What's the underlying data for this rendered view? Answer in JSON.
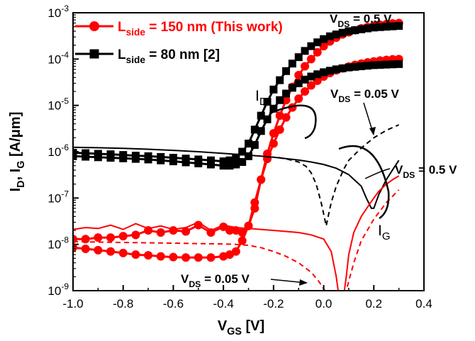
{
  "chart_data": {
    "type": "line",
    "xlabel_main": "V",
    "xlabel_sub": "GS",
    "xlabel_unit": " [V]",
    "ylabel_main": "I",
    "ylabel_sub1": "D",
    "ylabel_mid": ", I",
    "ylabel_sub2": "G",
    "ylabel_unit": " [A/μm]",
    "xlim": [
      -1.0,
      0.4
    ],
    "ylim_log10": [
      -9,
      -3
    ],
    "yscale": "log",
    "x_ticks": [
      "-1.0",
      "-0.8",
      "-0.6",
      "-0.4",
      "-0.2",
      "0.0",
      "0.2",
      "0.4"
    ],
    "y_tick_exponents": [
      "-9",
      "-8",
      "-7",
      "-6",
      "-5",
      "-4",
      "-3"
    ],
    "y_tick_base": "10",
    "legend": {
      "placement": "top-left",
      "entries": [
        {
          "main": "L",
          "sub": "side",
          "rest": " = 150 nm (This work)",
          "color": "#ff0000",
          "marker": "circle"
        },
        {
          "main": "L",
          "sub": "side",
          "rest": " = 80 nm [2]",
          "color": "#000000",
          "marker": "square"
        }
      ]
    },
    "annotations": {
      "vds_high_top": {
        "main": "V",
        "sub": "DS",
        "rest": " = 0.5 V"
      },
      "vds_low_top": {
        "main": "V",
        "sub": "DS",
        "rest": " = 0.05 V"
      },
      "vds_high_right": {
        "main": "V",
        "sub": "DS",
        "rest": " = 0.5 V"
      },
      "vds_low_bottom": {
        "main": "V",
        "sub": "DS",
        "rest": " = 0.05 V"
      },
      "id_label": {
        "main": "I",
        "sub": "D"
      },
      "ig_label": {
        "main": "I",
        "sub": "G"
      }
    },
    "series": [
      {
        "group": "I_D",
        "device": "L_side = 150 nm (This work)",
        "vds": "0.5 V",
        "color": "#ff0000",
        "marker": "circle",
        "x": [
          -1.0,
          -0.95,
          -0.9,
          -0.85,
          -0.8,
          -0.75,
          -0.7,
          -0.65,
          -0.6,
          -0.55,
          -0.5,
          -0.45,
          -0.4,
          -0.375,
          -0.35,
          -0.325,
          -0.3,
          -0.275,
          -0.25,
          -0.225,
          -0.2,
          -0.175,
          -0.15,
          -0.125,
          -0.1,
          -0.075,
          -0.05,
          -0.025,
          0.0,
          0.025,
          0.05,
          0.075,
          0.1,
          0.125,
          0.15,
          0.175,
          0.2,
          0.225,
          0.25,
          0.275,
          0.3
        ],
        "y": [
          1.3e-08,
          1.3e-08,
          1.4e-08,
          1.4e-08,
          1.5e-08,
          1.6e-08,
          2e-08,
          1.8e-08,
          2e-08,
          1.9e-08,
          2.6e-08,
          1.8e-08,
          2.4e-08,
          2e-08,
          2e-08,
          1.8e-08,
          2.5e-08,
          6e-08,
          2.5e-07,
          9e-07,
          2.5e-06,
          6e-06,
          1.3e-05,
          2.5e-05,
          4.5e-05,
          7e-05,
          0.0001,
          0.00014,
          0.00019,
          0.00024,
          0.00029,
          0.00034,
          0.00038,
          0.00042,
          0.00046,
          0.00049,
          0.00052,
          0.00055,
          0.00057,
          0.00059,
          0.0006
        ]
      },
      {
        "group": "I_D",
        "device": "L_side = 150 nm (This work)",
        "vds": "0.05 V",
        "color": "#ff0000",
        "marker": "circle",
        "x": [
          -1.0,
          -0.95,
          -0.9,
          -0.85,
          -0.8,
          -0.75,
          -0.7,
          -0.65,
          -0.6,
          -0.55,
          -0.5,
          -0.45,
          -0.4,
          -0.375,
          -0.35,
          -0.325,
          -0.3,
          -0.275,
          -0.25,
          -0.225,
          -0.2,
          -0.175,
          -0.15,
          -0.125,
          -0.1,
          -0.075,
          -0.05,
          -0.025,
          0.0,
          0.025,
          0.05,
          0.075,
          0.1,
          0.125,
          0.15,
          0.175,
          0.2,
          0.225,
          0.25,
          0.275,
          0.3
        ],
        "y": [
          8.5e-09,
          8e-09,
          7.5e-09,
          7e-09,
          6.5e-09,
          6e-09,
          5.8e-09,
          5.5e-09,
          5.3e-09,
          5.2e-09,
          5.2e-09,
          5.2e-09,
          5.5e-09,
          6e-09,
          7e-09,
          1.2e-08,
          2.5e-08,
          8e-08,
          2.5e-07,
          7e-07,
          1.5e-06,
          3e-06,
          5.5e-06,
          9e-06,
          1.4e-05,
          2e-05,
          2.7e-05,
          3.4e-05,
          4.2e-05,
          5e-05,
          5.7e-05,
          6.3e-05,
          6.9e-05,
          7.5e-05,
          8e-05,
          8.5e-05,
          8.9e-05,
          9.3e-05,
          9.6e-05,
          9.9e-05,
          0.0001
        ]
      },
      {
        "group": "I_D",
        "device": "L_side = 80 nm [2]",
        "vds": "0.5 V",
        "color": "#000000",
        "marker": "square",
        "x": [
          -1.0,
          -0.95,
          -0.9,
          -0.85,
          -0.8,
          -0.75,
          -0.7,
          -0.65,
          -0.6,
          -0.55,
          -0.5,
          -0.45,
          -0.4,
          -0.375,
          -0.35,
          -0.325,
          -0.3,
          -0.275,
          -0.25,
          -0.225,
          -0.2,
          -0.175,
          -0.15,
          -0.125,
          -0.1,
          -0.075,
          -0.05,
          -0.025,
          0.0,
          0.025,
          0.05,
          0.075,
          0.1,
          0.125,
          0.15,
          0.175,
          0.2,
          0.225,
          0.25,
          0.275,
          0.3
        ],
        "y": [
          9.5e-07,
          9.3e-07,
          9e-07,
          8.8e-07,
          8.5e-07,
          8.2e-07,
          8e-07,
          7.7e-07,
          7.4e-07,
          7.1e-07,
          6.8e-07,
          6.5e-07,
          6.2e-07,
          6.5e-07,
          7.5e-07,
          1e-06,
          1.5e-06,
          3e-06,
          6e-06,
          1.2e-05,
          2.2e-05,
          3.5e-05,
          5.5e-05,
          8e-05,
          0.00011,
          0.00015,
          0.00019,
          0.00023,
          0.00027,
          0.00031,
          0.00034,
          0.00037,
          0.0004,
          0.00042,
          0.00044,
          0.00046,
          0.00048,
          0.00049,
          0.0005,
          0.00051,
          0.00052
        ]
      },
      {
        "group": "I_D",
        "device": "L_side = 80 nm [2]",
        "vds": "0.05 V",
        "color": "#000000",
        "marker": "square",
        "x": [
          -1.0,
          -0.95,
          -0.9,
          -0.85,
          -0.8,
          -0.75,
          -0.7,
          -0.65,
          -0.6,
          -0.55,
          -0.5,
          -0.45,
          -0.4,
          -0.375,
          -0.35,
          -0.325,
          -0.3,
          -0.275,
          -0.25,
          -0.225,
          -0.2,
          -0.175,
          -0.15,
          -0.125,
          -0.1,
          -0.075,
          -0.05,
          -0.025,
          0.0,
          0.025,
          0.05,
          0.075,
          0.1,
          0.125,
          0.15,
          0.175,
          0.2,
          0.225,
          0.25,
          0.275,
          0.3
        ],
        "y": [
          8e-07,
          7.8e-07,
          7.6e-07,
          7.4e-07,
          7.2e-07,
          7e-07,
          6.8e-07,
          6.5e-07,
          6.2e-07,
          5.9e-07,
          5.6e-07,
          5.3e-07,
          5e-07,
          5e-07,
          5.3e-07,
          6e-07,
          8e-07,
          1.4e-06,
          2.8e-06,
          5e-06,
          8.5e-06,
          1.3e-05,
          1.8e-05,
          2.4e-05,
          3e-05,
          3.6e-05,
          4.2e-05,
          4.7e-05,
          5.2e-05,
          5.6e-05,
          6e-05,
          6.3e-05,
          6.6e-05,
          6.8e-05,
          7e-05,
          7.2e-05,
          7.4e-05,
          7.5e-05,
          7.6e-05,
          7.7e-05,
          7.8e-05
        ]
      },
      {
        "group": "I_G",
        "device": "L_side = 80 nm [2]",
        "vds": "0.5 V",
        "color": "#000000",
        "line": "solid",
        "x": [
          -1.0,
          -0.9,
          -0.8,
          -0.7,
          -0.6,
          -0.5,
          -0.4,
          -0.3,
          -0.25,
          -0.2,
          -0.15,
          -0.1,
          -0.05,
          0.0,
          0.05,
          0.1,
          0.15,
          0.17,
          0.19,
          0.2,
          0.22,
          0.25,
          0.28,
          0.3
        ],
        "y": [
          1.25e-06,
          1.22e-06,
          1.18e-06,
          1.13e-06,
          1.07e-06,
          1e-06,
          9.2e-07,
          8.4e-07,
          8e-07,
          7.6e-07,
          7.1e-07,
          6.6e-07,
          6e-07,
          5.3e-07,
          4.4e-07,
          3.2e-07,
          1.8e-07,
          1e-07,
          6e-08,
          6e-08,
          1.2e-07,
          2.5e-07,
          4.5e-07,
          6.5e-07
        ]
      },
      {
        "group": "I_G",
        "device": "L_side = 80 nm [2]",
        "vds": "0.05 V",
        "color": "#000000",
        "line": "dashed",
        "x": [
          -0.18,
          -0.14,
          -0.1,
          -0.07,
          -0.05,
          -0.03,
          -0.01,
          0.0,
          0.01,
          0.02,
          0.03,
          0.05,
          0.08,
          0.1,
          0.15,
          0.2,
          0.25,
          0.3
        ],
        "y": [
          7.5e-07,
          6.8e-07,
          6e-07,
          4.8e-07,
          3.5e-07,
          2e-07,
          8e-08,
          4.5e-08,
          2.5e-08,
          4.5e-08,
          8e-08,
          1.8e-07,
          4.2e-07,
          6.5e-07,
          1.2e-06,
          2e-06,
          2.9e-06,
          3.8e-06
        ]
      },
      {
        "group": "I_G",
        "device": "L_side = 150 nm (This work)",
        "vds": "0.5 V",
        "color": "#ff0000",
        "line": "solid",
        "x": [
          -1.0,
          -0.95,
          -0.9,
          -0.85,
          -0.8,
          -0.75,
          -0.7,
          -0.65,
          -0.6,
          -0.55,
          -0.5,
          -0.45,
          -0.4,
          -0.35,
          -0.3,
          -0.25,
          -0.2,
          -0.15,
          -0.1,
          -0.05,
          0.0,
          0.03,
          0.05,
          0.06,
          0.07,
          0.08,
          0.09,
          0.1,
          0.12,
          0.15,
          0.18,
          0.2,
          0.22,
          0.25,
          0.28,
          0.3
        ],
        "y": [
          2.1e-08,
          2.3e-08,
          2.2e-08,
          2.6e-08,
          2.1e-08,
          2.8e-08,
          2.2e-08,
          2.5e-08,
          2.1e-08,
          2.3e-08,
          3e-08,
          2e-08,
          2.6e-08,
          2.3e-08,
          2.2e-08,
          2.1e-08,
          2e-08,
          1.9e-08,
          1.8e-08,
          1.6e-08,
          1.3e-08,
          7e-09,
          2e-09,
          8e-10,
          8e-10,
          8e-10,
          2e-09,
          6e-09,
          1.8e-08,
          4e-08,
          7e-08,
          1e-07,
          1.4e-07,
          2e-07,
          2.6e-07,
          3e-07
        ]
      },
      {
        "group": "I_G",
        "device": "L_side = 150 nm (This work)",
        "vds": "0.05 V",
        "color": "#ff0000",
        "line": "dashed",
        "x": [
          -1.0,
          -0.9,
          -0.8,
          -0.7,
          -0.6,
          -0.5,
          -0.4,
          -0.35,
          -0.3,
          -0.25,
          -0.2,
          -0.15,
          -0.1,
          -0.05,
          -0.02,
          0.0,
          0.01,
          0.02,
          0.08,
          0.09,
          0.1,
          0.12,
          0.15,
          0.2,
          0.25,
          0.3
        ],
        "y": [
          1.15e-08,
          1.12e-08,
          1.1e-08,
          1.08e-08,
          1.06e-08,
          1.04e-08,
          1.02e-08,
          1e-08,
          9.5e-09,
          8.5e-09,
          7e-09,
          5.5e-09,
          4e-09,
          2.5e-09,
          1.6e-09,
          1.1e-09,
          9e-10,
          8e-10,
          8e-10,
          1e-09,
          1.6e-09,
          4e-09,
          1.2e-08,
          3.5e-08,
          8e-08,
          1.5e-07
        ]
      }
    ]
  }
}
